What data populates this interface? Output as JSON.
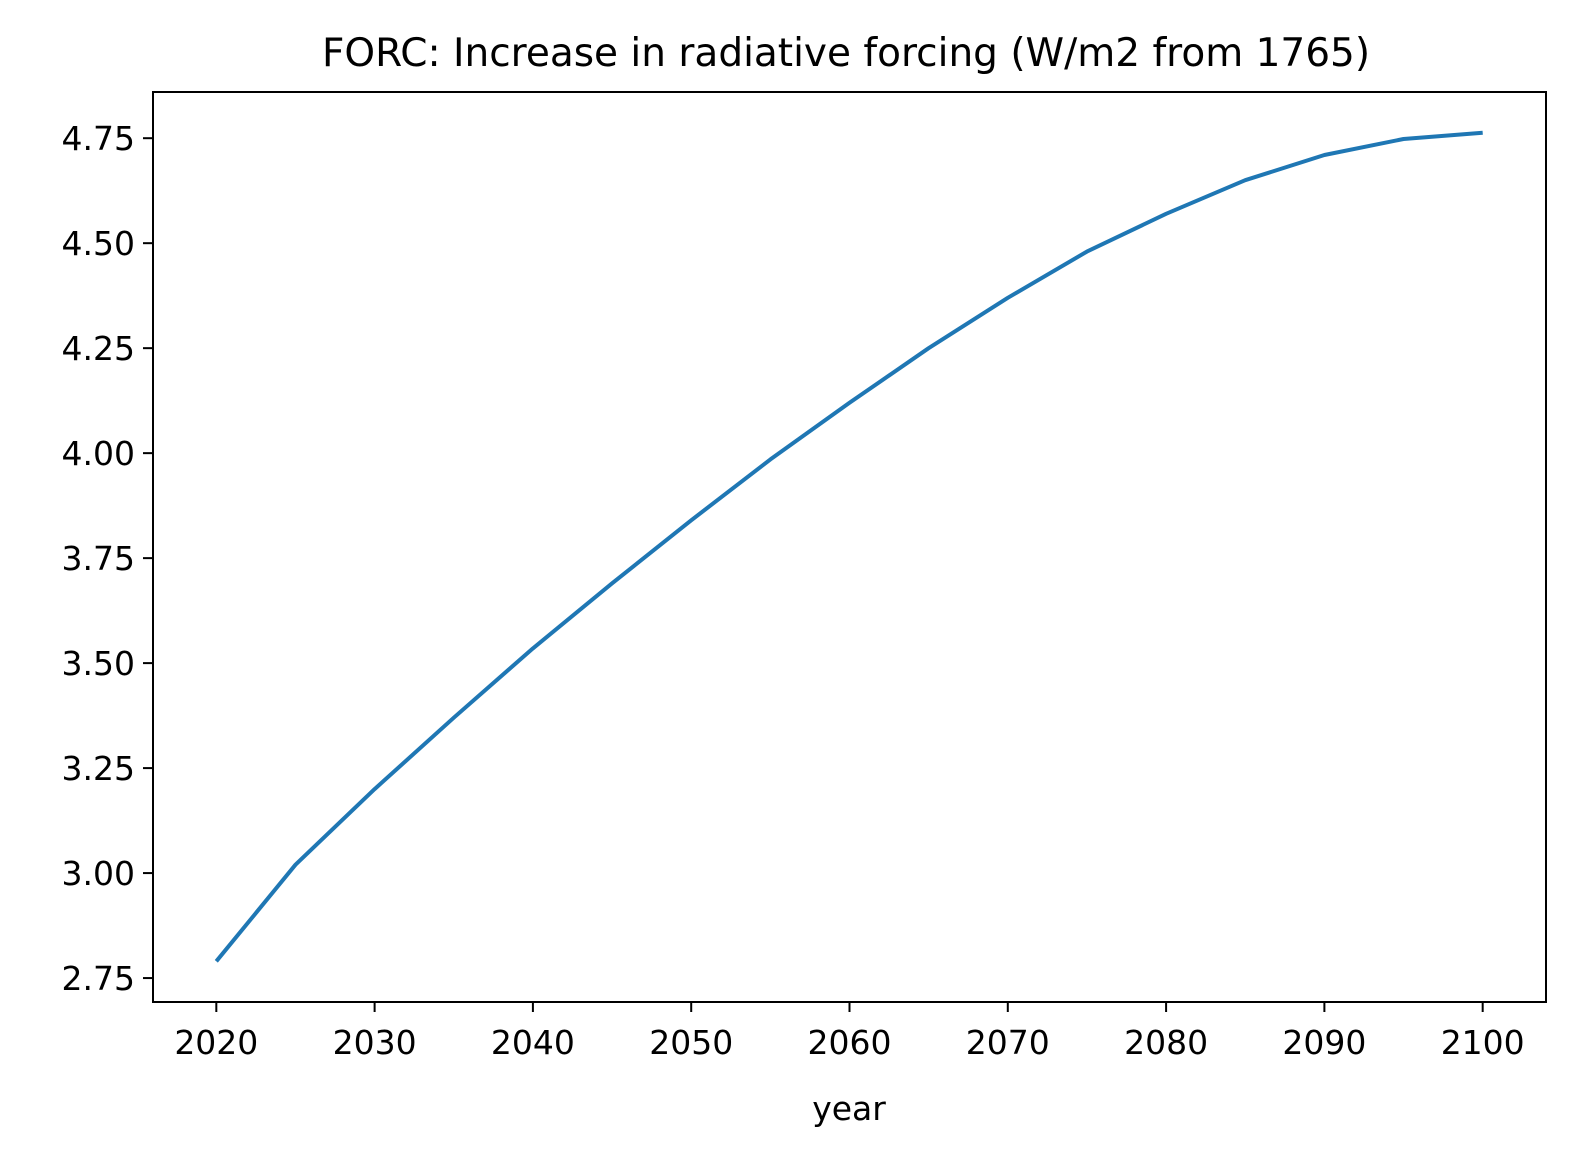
{
  "chart_data": {
    "type": "line",
    "title": "FORC: Increase in radiative forcing (W/m2 from 1765)",
    "xlabel": "year",
    "ylabel": "",
    "xlim": [
      2016,
      2104
    ],
    "ylim": [
      2.693,
      4.86
    ],
    "x_ticks": [
      2020,
      2030,
      2040,
      2050,
      2060,
      2070,
      2080,
      2090,
      2100
    ],
    "x_tick_labels": [
      "2020",
      "2030",
      "2040",
      "2050",
      "2060",
      "2070",
      "2080",
      "2090",
      "2100"
    ],
    "y_ticks": [
      2.75,
      3.0,
      3.25,
      3.5,
      3.75,
      4.0,
      4.25,
      4.5,
      4.75
    ],
    "y_tick_labels": [
      "2.75",
      "3.00",
      "3.25",
      "3.50",
      "3.75",
      "4.00",
      "4.25",
      "4.50",
      "4.75"
    ],
    "grid": false,
    "series": [
      {
        "color": "#1f77b4",
        "x": [
          2020,
          2025,
          2030,
          2035,
          2040,
          2045,
          2050,
          2055,
          2060,
          2065,
          2070,
          2075,
          2080,
          2085,
          2090,
          2095,
          2100
        ],
        "y": [
          2.79,
          3.02,
          3.2,
          3.37,
          3.535,
          3.69,
          3.84,
          3.985,
          4.12,
          4.25,
          4.37,
          4.48,
          4.57,
          4.65,
          4.71,
          4.748,
          4.763
        ]
      }
    ]
  }
}
